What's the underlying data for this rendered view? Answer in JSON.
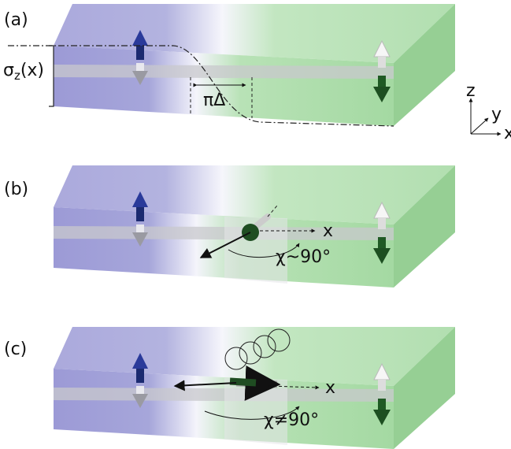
{
  "panels": [
    {
      "label": "(a)",
      "profile_symbol": "σ",
      "profile_subscript": "z",
      "profile_argument": "(x)",
      "width_label": "πΔ"
    },
    {
      "label": "(b)",
      "axis_label": "x",
      "angle_label": "χ~90°"
    },
    {
      "label": "(c)",
      "axis_label": "x",
      "angle_label": "χ≠90°"
    }
  ],
  "axes": {
    "z": "z",
    "y": "y",
    "x": "x"
  }
}
